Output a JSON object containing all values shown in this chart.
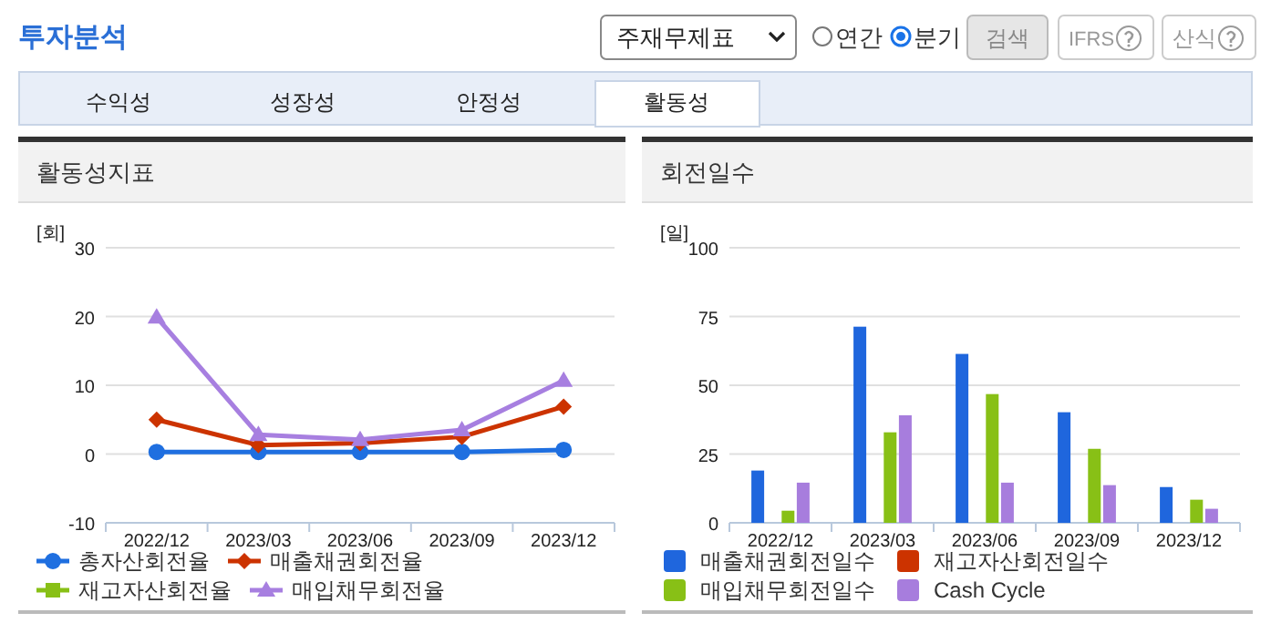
{
  "chart_data": [
    {
      "type": "other",
      "title": "투자분석",
      "annotations": [
        "주재무제표",
        "연간",
        "분기",
        "검색",
        "IFRS",
        "산식",
        "수익성",
        "성장성",
        "안정성",
        "활동성"
      ]
    },
    {
      "type": "line",
      "title": "활동성지표",
      "ylabel": "[회]",
      "categories": [
        "2022/12",
        "2023/03",
        "2023/06",
        "2023/09",
        "2023/12"
      ],
      "ylim": [
        -10,
        30
      ],
      "yticks": [
        -10,
        0,
        10,
        20,
        30
      ],
      "grid": "y",
      "legend": "bottom",
      "series": [
        {
          "name": "총자산회전율",
          "color": "#1f6fe0",
          "marker": "circle",
          "values": [
            0.3,
            0.3,
            0.3,
            0.3,
            0.6
          ]
        },
        {
          "name": "매출채권회전율",
          "color": "#cc3300",
          "marker": "diamond",
          "values": [
            5.0,
            1.3,
            1.6,
            2.5,
            6.9
          ]
        },
        {
          "name": "재고자산회전율",
          "color": "#88c016",
          "marker": "square",
          "values": [
            null,
            null,
            null,
            null,
            null
          ]
        },
        {
          "name": "매입채무회전율",
          "color": "#a77fe0",
          "marker": "triangle",
          "values": [
            19.9,
            2.8,
            2.1,
            3.5,
            10.7
          ]
        }
      ]
    },
    {
      "type": "bar",
      "title": "회전일수",
      "ylabel": "[일]",
      "categories": [
        "2022/12",
        "2023/03",
        "2023/06",
        "2023/09",
        "2023/12"
      ],
      "ylim": [
        0,
        100
      ],
      "yticks": [
        0,
        25,
        50,
        75,
        100
      ],
      "grid": "y",
      "legend": "bottom",
      "series": [
        {
          "name": "매출채권회전일수",
          "color": "#1f66dd",
          "values": [
            19.0,
            71.3,
            61.4,
            40.2,
            13.0
          ]
        },
        {
          "name": "재고자산회전일수",
          "color": "#cc3300",
          "values": [
            null,
            null,
            null,
            null,
            null
          ]
        },
        {
          "name": "매입채무회전일수",
          "color": "#88c016",
          "values": [
            4.4,
            32.9,
            46.8,
            26.9,
            8.4
          ]
        },
        {
          "name": "Cash Cycle",
          "color": "#a77ddd",
          "values": [
            14.6,
            39.1,
            14.6,
            13.7,
            5.1
          ]
        }
      ]
    }
  ]
}
